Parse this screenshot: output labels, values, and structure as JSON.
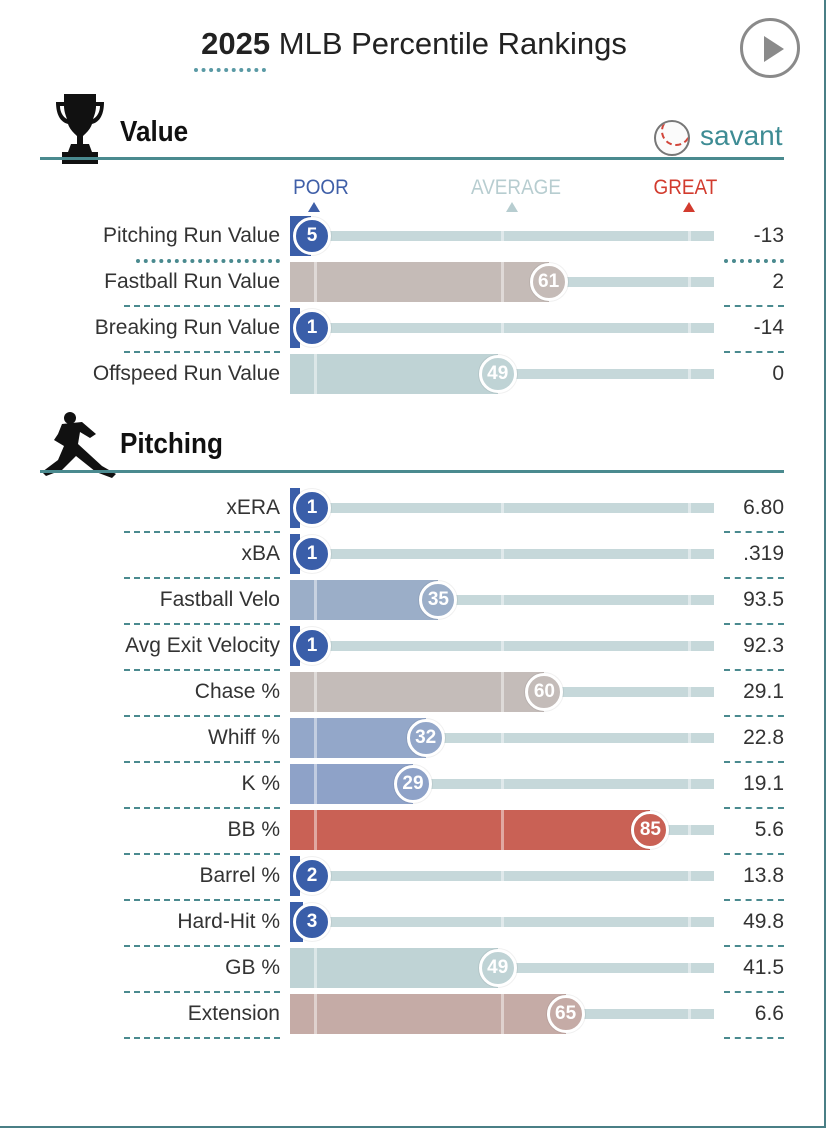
{
  "header": {
    "title_year": "2025",
    "title_rest": "MLB Percentile Rankings",
    "play_icon": "play-icon"
  },
  "brand": {
    "name": "savant",
    "icon": "baseball-icon",
    "color": "#3e8c94"
  },
  "scale": {
    "poor": "POOR",
    "average": "AVERAGE",
    "great": "GREAT",
    "poor_color": "#3f5fa8",
    "average_color": "#b7cdd0",
    "great_color": "#d23b2e"
  },
  "sections": [
    {
      "title": "Value",
      "icon": "trophy-icon"
    },
    {
      "title": "Pitching",
      "icon": "pitcher-icon"
    }
  ],
  "chart_data": {
    "type": "bar",
    "orientation": "horizontal",
    "title": "2025 MLB Percentile Rankings",
    "xlim": [
      0,
      100
    ],
    "xlabels": [
      "POOR",
      "AVERAGE",
      "GREAT"
    ],
    "groups": [
      {
        "name": "Value",
        "metrics": [
          {
            "label": "Pitching Run Value",
            "percentile": 5,
            "value": "-13",
            "color": "#3a5ea9"
          },
          {
            "label": "Fastball Run Value",
            "percentile": 61,
            "value": "2",
            "color": "#c5bbb7"
          },
          {
            "label": "Breaking Run Value",
            "percentile": 1,
            "value": "-14",
            "color": "#3a5ea9"
          },
          {
            "label": "Offspeed Run Value",
            "percentile": 49,
            "value": "0",
            "color": "#bfd3d5"
          }
        ]
      },
      {
        "name": "Pitching",
        "metrics": [
          {
            "label": "xERA",
            "percentile": 1,
            "value": "6.80",
            "color": "#3a5ea9"
          },
          {
            "label": "xBA",
            "percentile": 1,
            "value": ".319",
            "color": "#3a5ea9"
          },
          {
            "label": "Fastball Velo",
            "percentile": 35,
            "value": "93.5",
            "color": "#9baec8"
          },
          {
            "label": "Avg Exit Velocity",
            "percentile": 1,
            "value": "92.3",
            "color": "#3a5ea9"
          },
          {
            "label": "Chase %",
            "percentile": 60,
            "value": "29.1",
            "color": "#c4bcb9"
          },
          {
            "label": "Whiff %",
            "percentile": 32,
            "value": "22.8",
            "color": "#93a7c9"
          },
          {
            "label": "K %",
            "percentile": 29,
            "value": "19.1",
            "color": "#8ea2c8"
          },
          {
            "label": "BB %",
            "percentile": 85,
            "value": "5.6",
            "color": "#c96155"
          },
          {
            "label": "Barrel %",
            "percentile": 2,
            "value": "13.8",
            "color": "#3a5ea9"
          },
          {
            "label": "Hard-Hit %",
            "percentile": 3,
            "value": "49.8",
            "color": "#3a5ea9"
          },
          {
            "label": "GB %",
            "percentile": 49,
            "value": "41.5",
            "color": "#bfd3d5"
          },
          {
            "label": "Extension",
            "percentile": 65,
            "value": "6.6",
            "color": "#c5aba6"
          }
        ]
      }
    ]
  }
}
